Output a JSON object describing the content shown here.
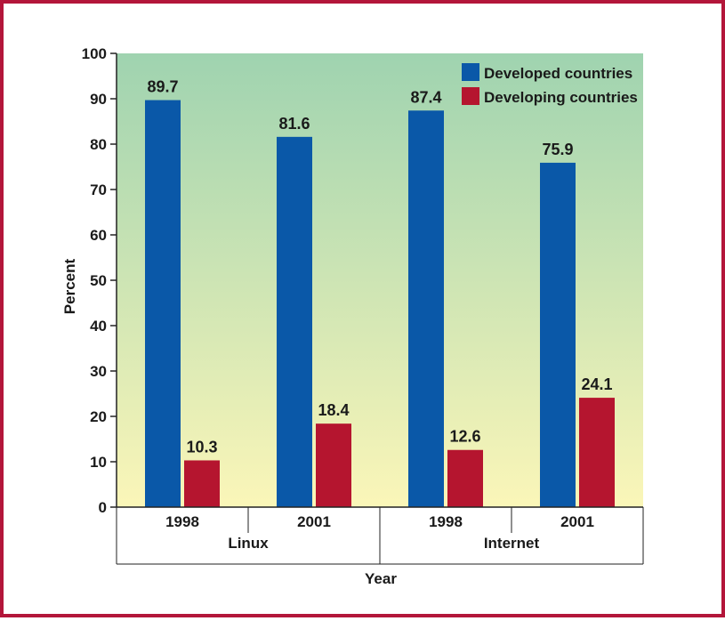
{
  "chart_data": {
    "type": "bar",
    "categories": [
      "1998",
      "2001",
      "1998",
      "2001"
    ],
    "groups": [
      {
        "label": "Linux",
        "categories": [
          "1998",
          "2001"
        ]
      },
      {
        "label": "Internet",
        "categories": [
          "1998",
          "2001"
        ]
      }
    ],
    "series": [
      {
        "name": "Developed countries",
        "color": "#0a58a8",
        "values": [
          89.7,
          81.6,
          87.4,
          75.9
        ]
      },
      {
        "name": "Developing countries",
        "color": "#b5152f",
        "values": [
          10.3,
          18.4,
          12.6,
          24.1
        ]
      }
    ],
    "ylabel": "Percent",
    "xlabel": "Year",
    "ylim": [
      0,
      100
    ],
    "yticks": [
      "0",
      "10",
      "20",
      "30",
      "40",
      "50",
      "60",
      "70",
      "80",
      "90",
      "100"
    ],
    "legend_position": "top-right",
    "background_gradient": [
      "#9fd3b0",
      "#fbf6b8"
    ],
    "grid": false
  }
}
